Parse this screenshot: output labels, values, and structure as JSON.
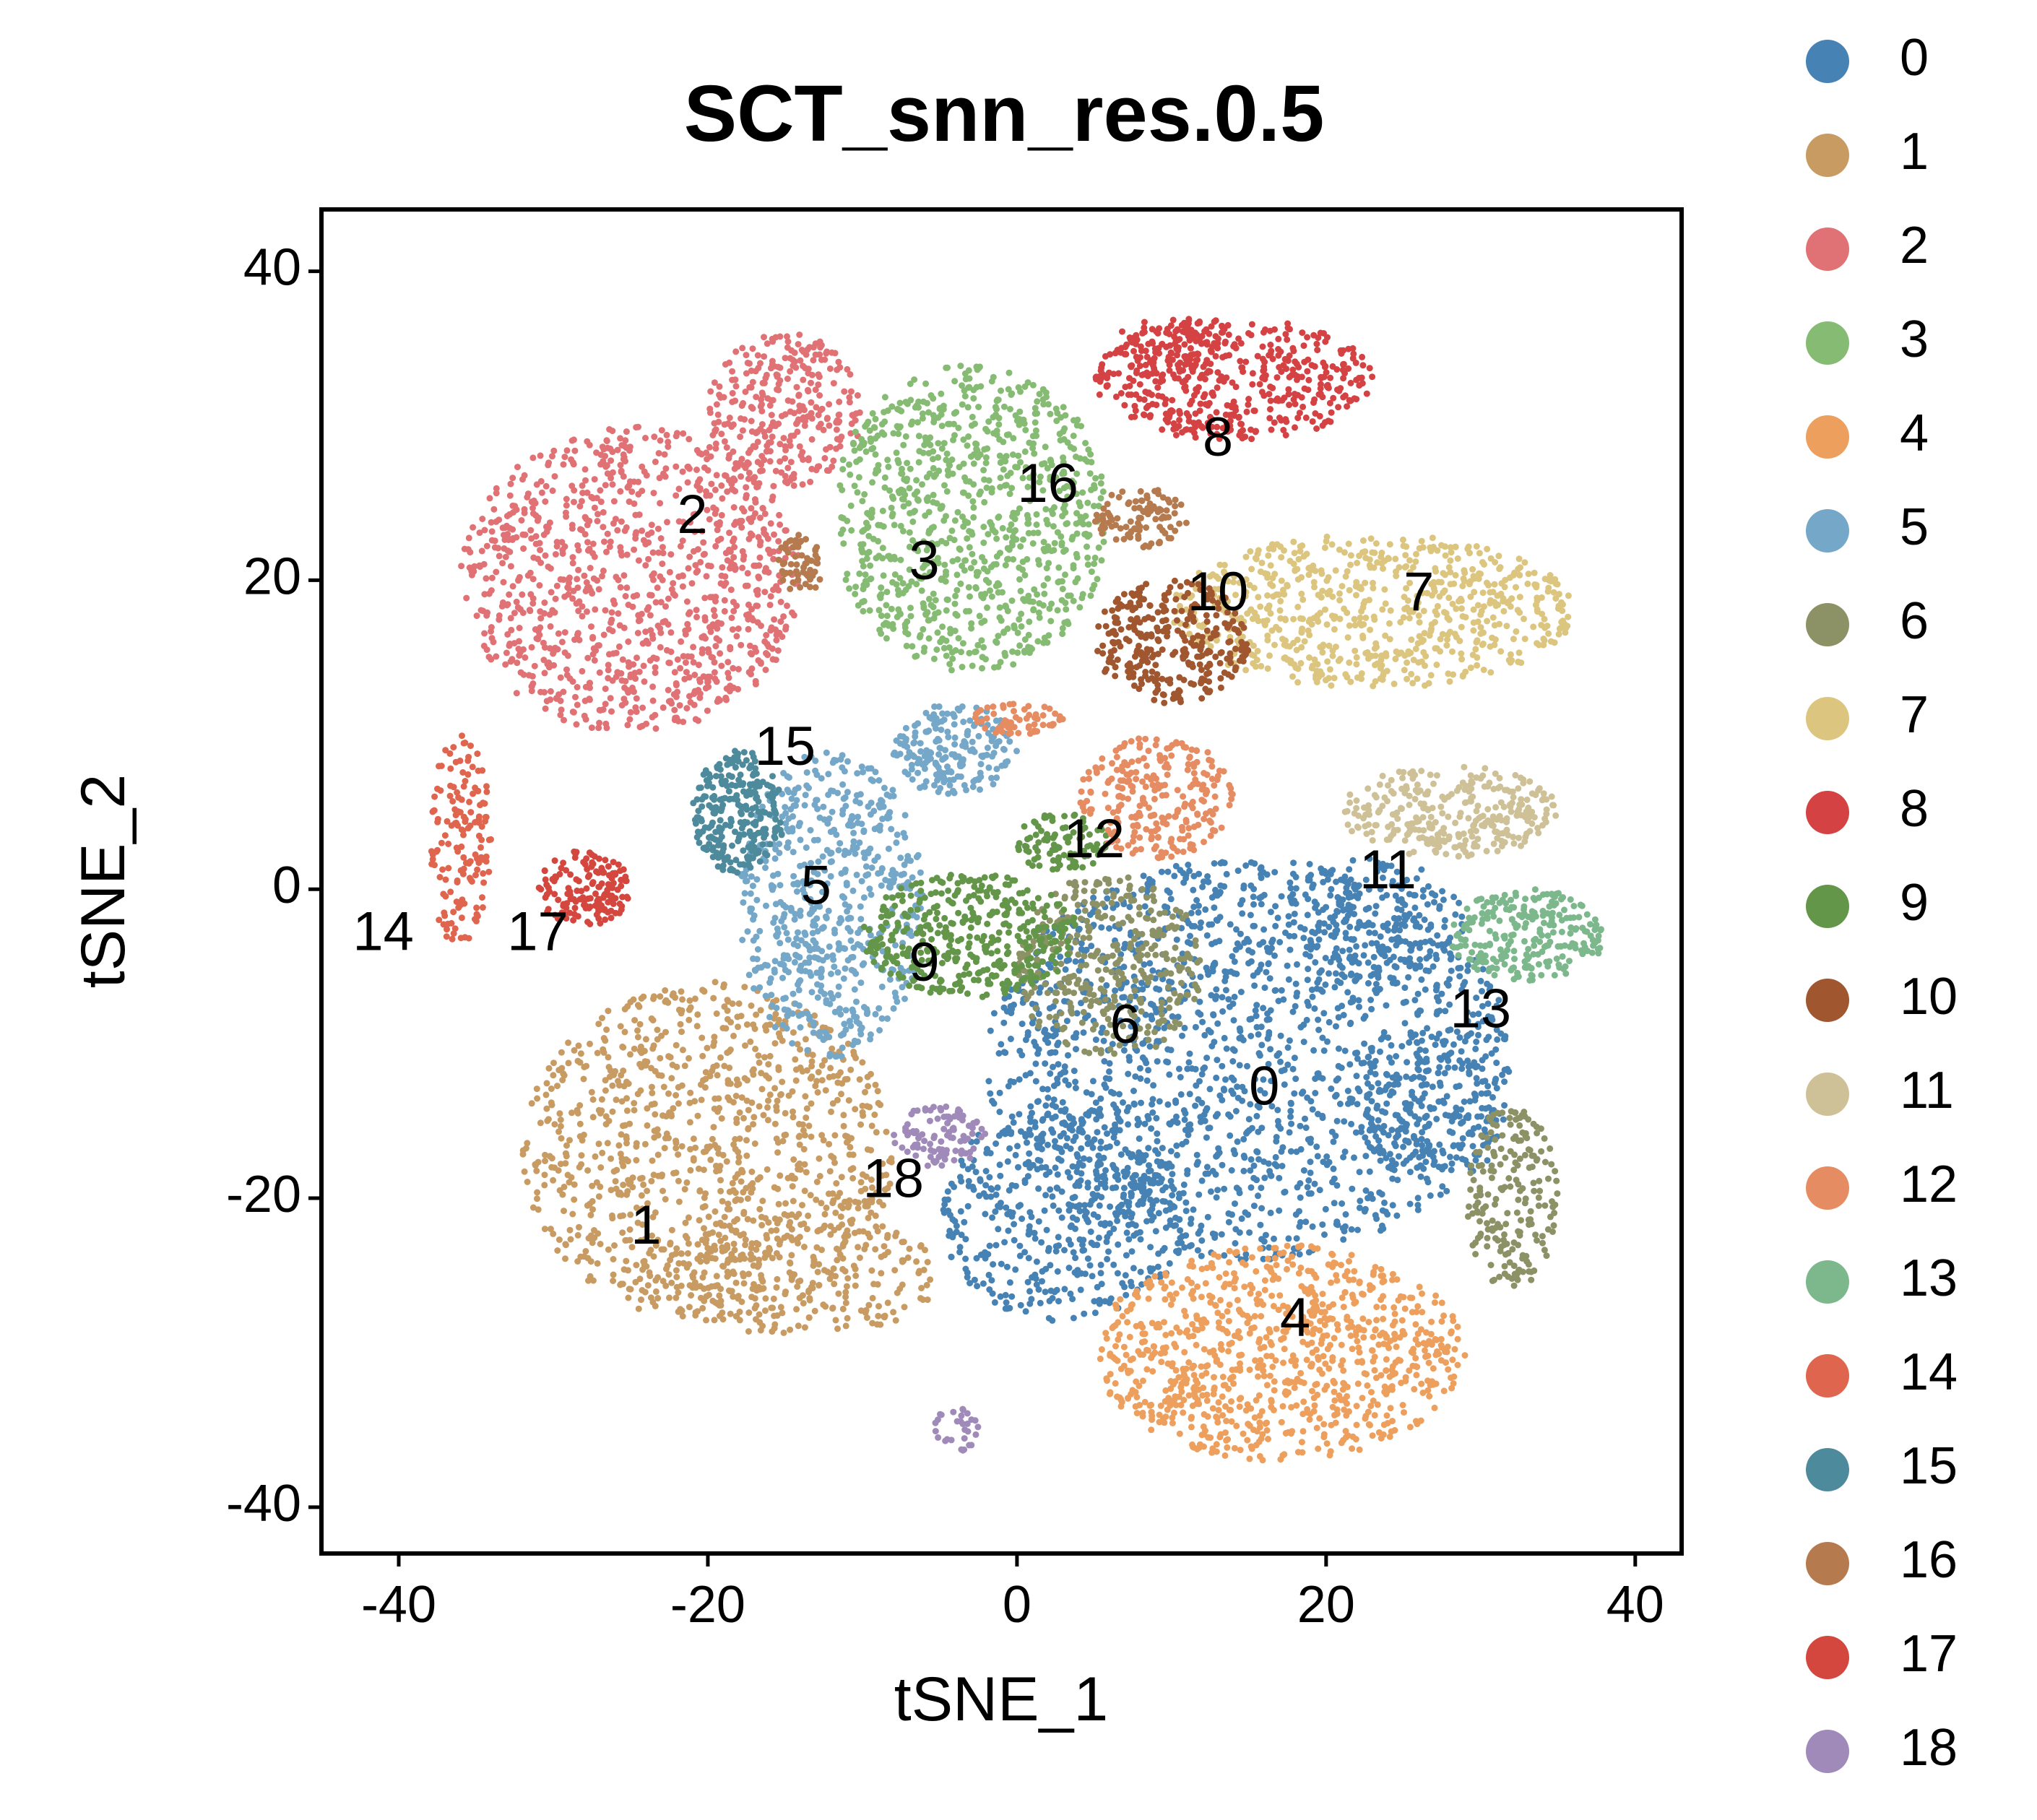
{
  "chart_data": {
    "type": "scatter",
    "title": "SCT_snn_res.0.5",
    "xlabel": "tSNE_1",
    "ylabel": "tSNE_2",
    "xlim": [
      -45,
      43
    ],
    "ylim": [
      -43,
      44
    ],
    "x_ticks": [
      -40,
      -20,
      0,
      20,
      40
    ],
    "y_ticks": [
      -40,
      -20,
      0,
      20,
      40
    ],
    "x_tick_labels": [
      "-40",
      "-20",
      "0",
      "20",
      "40"
    ],
    "y_tick_labels": [
      "-40",
      "-20",
      "0",
      "20",
      "40"
    ],
    "grid": false,
    "legend_position": "right",
    "marker": "dot",
    "series": [
      {
        "name": "0",
        "color": "#4682B4",
        "label_at": [
          16,
          -13
        ],
        "clusters": [
          {
            "cx": 15,
            "cy": -11,
            "rx": 17,
            "ry": 13,
            "n": 1600
          },
          {
            "cx": 3,
            "cy": -21,
            "rx": 8,
            "ry": 7,
            "n": 450
          },
          {
            "cx": 23,
            "cy": -2,
            "rx": 6,
            "ry": 4,
            "n": 200
          },
          {
            "cx": 27,
            "cy": -14,
            "rx": 5,
            "ry": 5,
            "n": 200
          }
        ]
      },
      {
        "name": "1",
        "color": "#C89B63",
        "label_at": [
          -24,
          -22
        ],
        "clusters": [
          {
            "cx": -20,
            "cy": -17,
            "rx": 12,
            "ry": 11,
            "n": 1000
          },
          {
            "cx": -14,
            "cy": -25,
            "rx": 9,
            "ry": 4,
            "n": 250
          }
        ]
      },
      {
        "name": "2",
        "color": "#E07276",
        "label_at": [
          -21,
          24
        ],
        "clusters": [
          {
            "cx": -25,
            "cy": 20,
            "rx": 11,
            "ry": 10,
            "n": 1000
          },
          {
            "cx": -15,
            "cy": 31,
            "rx": 5,
            "ry": 5,
            "n": 300
          }
        ]
      },
      {
        "name": "3",
        "color": "#86BB73",
        "label_at": [
          -6,
          21
        ],
        "clusters": [
          {
            "cx": -3,
            "cy": 24,
            "rx": 9,
            "ry": 10,
            "n": 900
          }
        ]
      },
      {
        "name": "4",
        "color": "#EDA05E",
        "label_at": [
          18,
          -28
        ],
        "clusters": [
          {
            "cx": 17,
            "cy": -30,
            "rx": 12,
            "ry": 7,
            "n": 900
          }
        ]
      },
      {
        "name": "5",
        "color": "#74A7C8",
        "label_at": [
          -13,
          0
        ],
        "clusters": [
          {
            "cx": -12,
            "cy": -1,
            "rx": 6,
            "ry": 10,
            "n": 600
          },
          {
            "cx": -4,
            "cy": 9,
            "rx": 4,
            "ry": 3,
            "n": 200
          }
        ]
      },
      {
        "name": "6",
        "color": "#8D9266",
        "label_at": [
          7,
          -9
        ],
        "clusters": [
          {
            "cx": 6,
            "cy": -5,
            "rx": 6,
            "ry": 6,
            "n": 350
          },
          {
            "cx": 32,
            "cy": -20,
            "rx": 3,
            "ry": 6,
            "n": 200
          }
        ]
      },
      {
        "name": "7",
        "color": "#DCC57F",
        "label_at": [
          26,
          19
        ],
        "clusters": [
          {
            "cx": 23,
            "cy": 18,
            "rx": 13,
            "ry": 5,
            "n": 700
          }
        ]
      },
      {
        "name": "8",
        "color": "#D44244",
        "label_at": [
          13,
          29
        ],
        "clusters": [
          {
            "cx": 14,
            "cy": 33,
            "rx": 9,
            "ry": 4,
            "n": 450
          },
          {
            "cx": 10,
            "cy": 35,
            "rx": 4,
            "ry": 2,
            "n": 100
          }
        ]
      },
      {
        "name": "9",
        "color": "#64964A",
        "label_at": [
          -6,
          -5
        ],
        "clusters": [
          {
            "cx": -3,
            "cy": -3,
            "rx": 7,
            "ry": 4,
            "n": 400
          },
          {
            "cx": 3,
            "cy": 3,
            "rx": 3,
            "ry": 2,
            "n": 100
          }
        ]
      },
      {
        "name": "10",
        "color": "#A0562F",
        "label_at": [
          13,
          19
        ],
        "clusters": [
          {
            "cx": 10,
            "cy": 16,
            "rx": 5,
            "ry": 4,
            "n": 300
          }
        ]
      },
      {
        "name": "11",
        "color": "#CFC197",
        "label_at": [
          24,
          1
        ],
        "clusters": [
          {
            "cx": 28,
            "cy": 5,
            "rx": 7,
            "ry": 3,
            "n": 300
          }
        ]
      },
      {
        "name": "12",
        "color": "#E68C63",
        "label_at": [
          5,
          3
        ],
        "clusters": [
          {
            "cx": 9,
            "cy": 6,
            "rx": 5,
            "ry": 4,
            "n": 250
          },
          {
            "cx": 0,
            "cy": 11,
            "rx": 3,
            "ry": 1,
            "n": 60
          }
        ]
      },
      {
        "name": "13",
        "color": "#7DB88D",
        "label_at": [
          30,
          -8
        ],
        "clusters": [
          {
            "cx": 33,
            "cy": -3,
            "rx": 5,
            "ry": 3,
            "n": 250
          }
        ]
      },
      {
        "name": "14",
        "color": "#E0654E",
        "label_at": [
          -41,
          -3
        ],
        "clusters": [
          {
            "cx": -36,
            "cy": 3,
            "rx": 2,
            "ry": 7,
            "n": 150
          }
        ]
      },
      {
        "name": "15",
        "color": "#4D8A9C",
        "label_at": [
          -15,
          9
        ],
        "clusters": [
          {
            "cx": -18,
            "cy": 5,
            "rx": 3,
            "ry": 4,
            "n": 250
          }
        ]
      },
      {
        "name": "16",
        "color": "#B57A4E",
        "label_at": [
          2,
          26
        ],
        "clusters": [
          {
            "cx": 8,
            "cy": 24,
            "rx": 3,
            "ry": 2,
            "n": 100
          },
          {
            "cx": -14,
            "cy": 21,
            "rx": 1.5,
            "ry": 2,
            "n": 60
          }
        ]
      },
      {
        "name": "17",
        "color": "#D4473F",
        "label_at": [
          -31,
          -3
        ],
        "clusters": [
          {
            "cx": -28,
            "cy": 0,
            "rx": 3,
            "ry": 2.5,
            "n": 150
          }
        ]
      },
      {
        "name": "18",
        "color": "#A08AB9",
        "label_at": [
          -8,
          -19
        ],
        "clusters": [
          {
            "cx": -5,
            "cy": -16,
            "rx": 3,
            "ry": 2,
            "n": 100
          },
          {
            "cx": -4,
            "cy": -35,
            "rx": 1.5,
            "ry": 1.5,
            "n": 30
          }
        ]
      }
    ]
  }
}
